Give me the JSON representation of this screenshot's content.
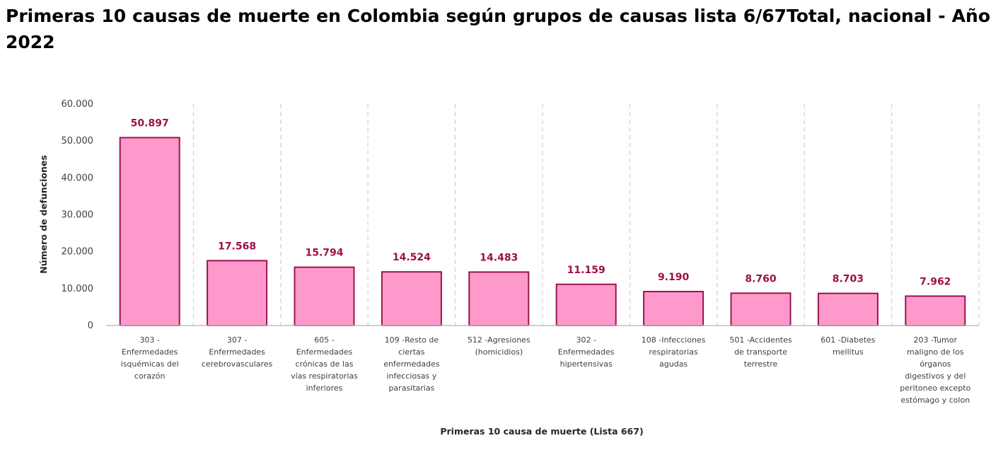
{
  "chart_data": {
    "type": "bar",
    "title": "Primeras 10 causas de muerte en Colombia según grupos de causas lista 6/67Total, nacional - Año 2022",
    "xlabel": "Primeras 10 causa de muerte (Lista 667)",
    "ylabel": "Número de defunciones",
    "ylim": [
      0,
      60000
    ],
    "yticks": [
      0,
      10000,
      20000,
      30000,
      40000,
      50000,
      60000
    ],
    "ytick_labels": [
      "0",
      "10.000",
      "20.000",
      "30.000",
      "40.000",
      "50.000",
      "60.000"
    ],
    "grid": "vertical dashed separators between categories",
    "categories": [
      [
        "303 -",
        "Enfermedades",
        "isquémicas del",
        "corazón"
      ],
      [
        "307 -",
        "Enfermedades",
        "cerebrovasculares"
      ],
      [
        "605 -",
        "Enfermedades",
        "crónicas de las",
        "vías respiratorias",
        "inferiores"
      ],
      [
        "109 -Resto de",
        "ciertas",
        "enfermedades",
        "infecciosas y",
        "parasitarias"
      ],
      [
        "512 -Agresiones",
        "(homicidios)"
      ],
      [
        "302 -",
        "Enfermedades",
        "hipertensivas"
      ],
      [
        "108 -Infecciones",
        "respiratorias",
        "agudas"
      ],
      [
        "501 -Accidentes",
        "de transporte",
        "terrestre"
      ],
      [
        "601 -Diabetes",
        "mellitus"
      ],
      [
        "203 -Tumor",
        "maligno de los",
        "órganos",
        "digestivos y del",
        "peritoneo excepto",
        "estómago y colon"
      ]
    ],
    "values": [
      50897,
      17568,
      15794,
      14524,
      14483,
      11159,
      9190,
      8760,
      8703,
      7962
    ],
    "value_labels": [
      "50.897",
      "17.568",
      "15.794",
      "14.524",
      "14.483",
      "11.159",
      "9.190",
      "8.760",
      "8.703",
      "7.962"
    ],
    "colors": {
      "bar_fill": "#ff99cc",
      "bar_stroke": "#99154a",
      "data_label": "#9b1148",
      "gridline": "#d0d0d0",
      "axis": "#bfbfbf"
    }
  }
}
